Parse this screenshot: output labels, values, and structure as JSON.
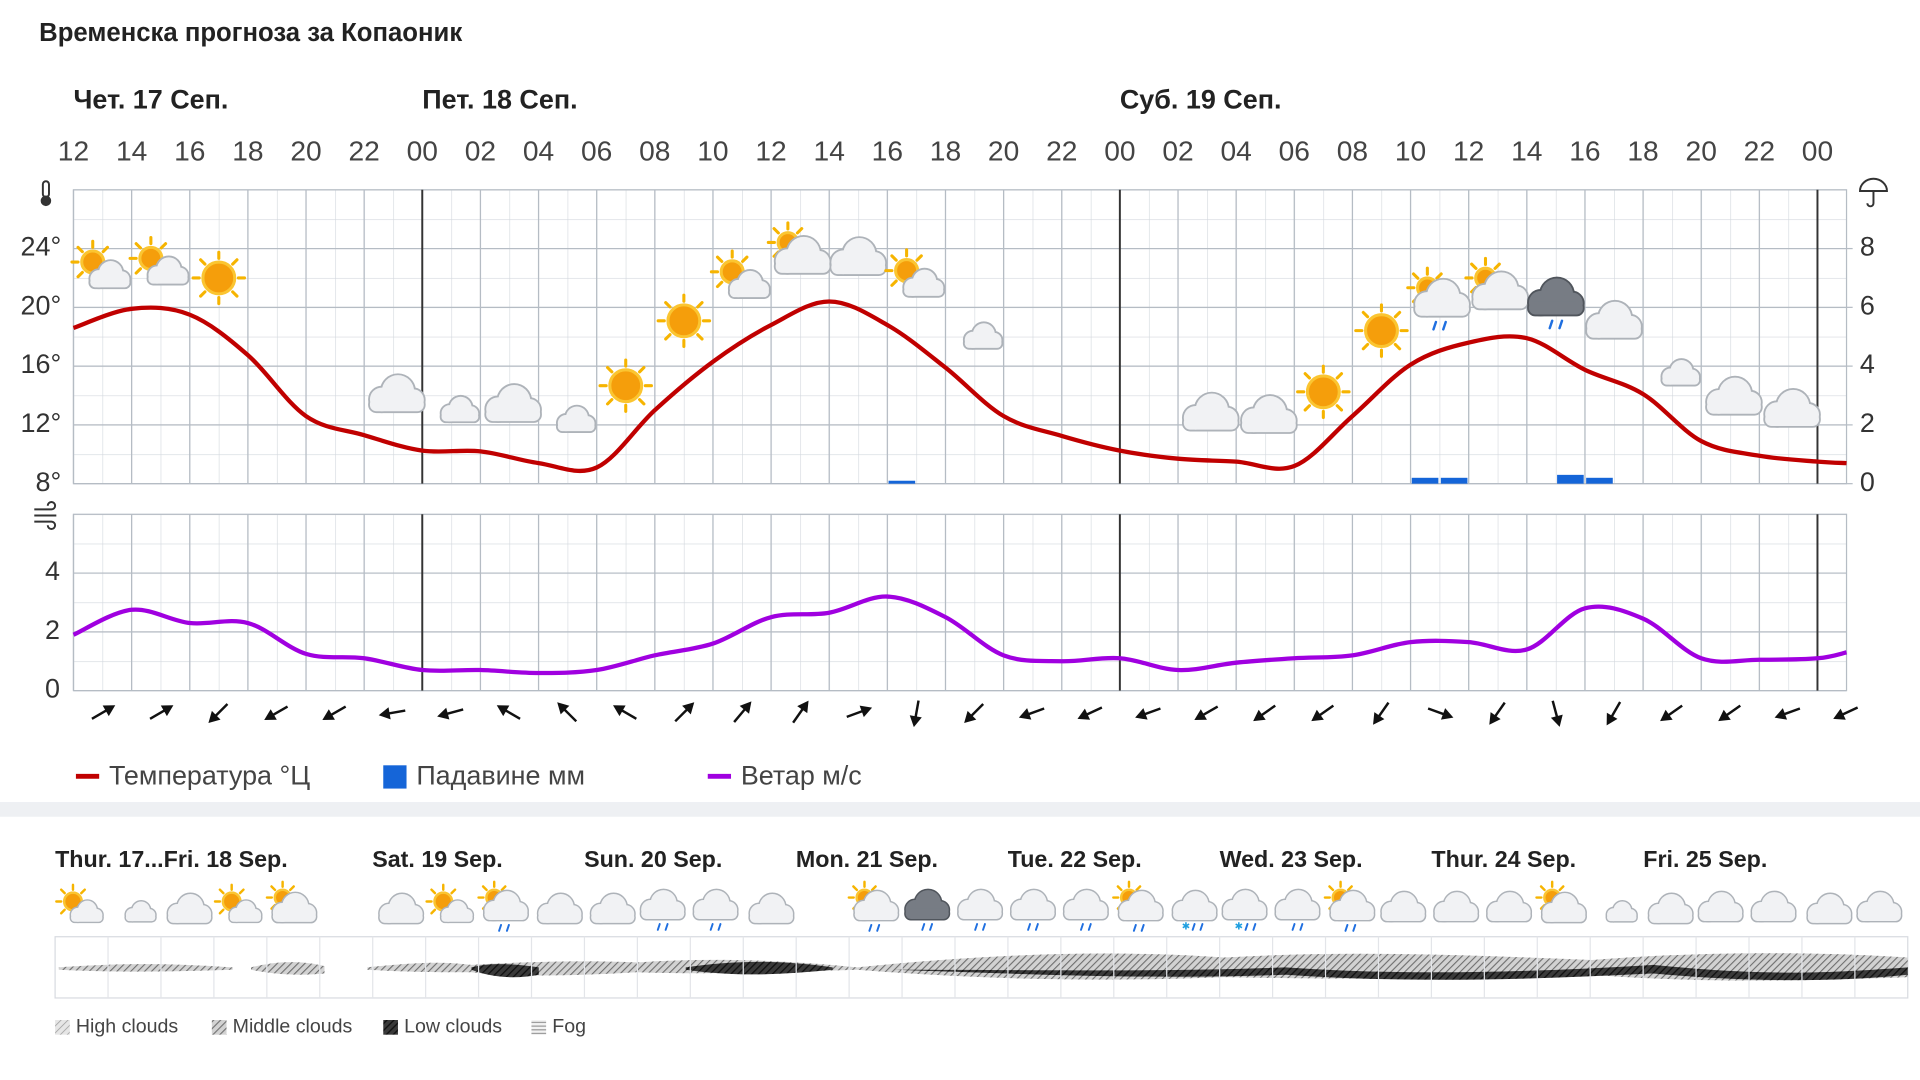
{
  "title": "Временска прогноза за Копаоник",
  "day_labels": [
    "Чет. 17 Сеп.",
    "Пет. 18 Сеп.",
    "Суб. 19 Сеп."
  ],
  "chart_data": [
    {
      "type": "line",
      "x": [
        0,
        2,
        4,
        6,
        8,
        10,
        12,
        14,
        16,
        18,
        20,
        22,
        24,
        26,
        28,
        30,
        32,
        34,
        36,
        38,
        40,
        42,
        44,
        46,
        48,
        50,
        52,
        54,
        56,
        58,
        60,
        61
      ],
      "xlim": [
        0,
        61
      ],
      "xticks": [
        {
          "value": 0,
          "label": "12"
        },
        {
          "value": 2,
          "label": "14"
        },
        {
          "value": 4,
          "label": "16"
        },
        {
          "value": 6,
          "label": "18"
        },
        {
          "value": 8,
          "label": "20"
        },
        {
          "value": 10,
          "label": "22"
        },
        {
          "value": 12,
          "label": "00"
        },
        {
          "value": 14,
          "label": "02"
        },
        {
          "value": 16,
          "label": "04"
        },
        {
          "value": 18,
          "label": "06"
        },
        {
          "value": 20,
          "label": "08"
        },
        {
          "value": 22,
          "label": "10"
        },
        {
          "value": 24,
          "label": "12"
        },
        {
          "value": 26,
          "label": "14"
        },
        {
          "value": 28,
          "label": "16"
        },
        {
          "value": 30,
          "label": "18"
        },
        {
          "value": 32,
          "label": "20"
        },
        {
          "value": 34,
          "label": "22"
        },
        {
          "value": 36,
          "label": "00"
        },
        {
          "value": 38,
          "label": "02"
        },
        {
          "value": 40,
          "label": "04"
        },
        {
          "value": 42,
          "label": "06"
        },
        {
          "value": 44,
          "label": "08"
        },
        {
          "value": 46,
          "label": "10"
        },
        {
          "value": 48,
          "label": "12"
        },
        {
          "value": 50,
          "label": "14"
        },
        {
          "value": 52,
          "label": "16"
        },
        {
          "value": 54,
          "label": "18"
        },
        {
          "value": 56,
          "label": "20"
        },
        {
          "value": 58,
          "label": "22"
        },
        {
          "value": 60,
          "label": "00"
        }
      ],
      "ylim": [
        8,
        28
      ],
      "yticks": [
        {
          "value": 8,
          "label": "8°"
        },
        {
          "value": 12,
          "label": "12°"
        },
        {
          "value": 16,
          "label": "16°"
        },
        {
          "value": 20,
          "label": "20°"
        },
        {
          "value": 24,
          "label": "24°"
        }
      ],
      "y2lim": [
        0,
        10
      ],
      "y2ticks": [
        0,
        2,
        4,
        6,
        8
      ],
      "grid": true,
      "series": [
        {
          "name": "Температура °Ц",
          "color": "#c00000",
          "values": [
            18.6,
            19.9,
            19.5,
            16.75,
            12.6,
            11.3,
            10.25,
            10.2,
            9.4,
            9.1,
            13,
            16.3,
            18.8,
            20.4,
            18.8,
            15.9,
            12.6,
            11.25,
            10.25,
            9.7,
            9.5,
            9.2,
            12.6,
            16.1,
            17.6,
            17.9,
            15.75,
            14.1,
            10.9,
            9.9,
            9.5,
            9.4
          ]
        },
        {
          "name": "Падавине мм",
          "color": "#1565d8",
          "type": "bar",
          "axis": "y2",
          "x": [
            28,
            46,
            47,
            51,
            52
          ],
          "values": [
            0.1,
            0.2,
            0.2,
            0.3,
            0.2
          ]
        }
      ]
    },
    {
      "type": "line",
      "x": [
        0,
        2,
        4,
        6,
        8,
        10,
        12,
        14,
        16,
        18,
        20,
        22,
        24,
        26,
        28,
        30,
        32,
        34,
        36,
        38,
        40,
        42,
        44,
        46,
        48,
        50,
        52,
        54,
        56,
        58,
        60,
        61
      ],
      "xlim": [
        0,
        61
      ],
      "ylim": [
        0,
        6
      ],
      "yticks": [
        0,
        2,
        4
      ],
      "grid": true,
      "series": [
        {
          "name": "Ветар м/с",
          "color": "#a000e0",
          "values": [
            1.9,
            2.75,
            2.3,
            2.3,
            1.25,
            1.1,
            0.7,
            0.7,
            0.6,
            0.7,
            1.2,
            1.6,
            2.5,
            2.65,
            3.2,
            2.5,
            1.2,
            1.0,
            1.1,
            0.7,
            0.95,
            1.1,
            1.2,
            1.65,
            1.65,
            1.4,
            2.8,
            2.45,
            1.1,
            1.05,
            1.1,
            1.3
          ]
        }
      ],
      "wind_direction": [
        60,
        60,
        225,
        240,
        240,
        260,
        255,
        300,
        315,
        300,
        45,
        40,
        35,
        70,
        190,
        225,
        250,
        245,
        250,
        240,
        235,
        235,
        215,
        110,
        215,
        165,
        210,
        235,
        235,
        250,
        245
      ]
    }
  ],
  "forecast_days": [
    "Thur. 17...Fri. 18 Sep.",
    "Sat. 19 Sep.",
    "Sun. 20 Sep.",
    "Mon. 21 Sep.",
    "Tue. 22 Sep.",
    "Wed. 23 Sep.",
    "Thur. 24 Sep.",
    "Fri. 25 Sep."
  ],
  "cloud_legend": [
    "High clouds",
    "Middle clouds",
    "Low clouds",
    "Fog"
  ]
}
